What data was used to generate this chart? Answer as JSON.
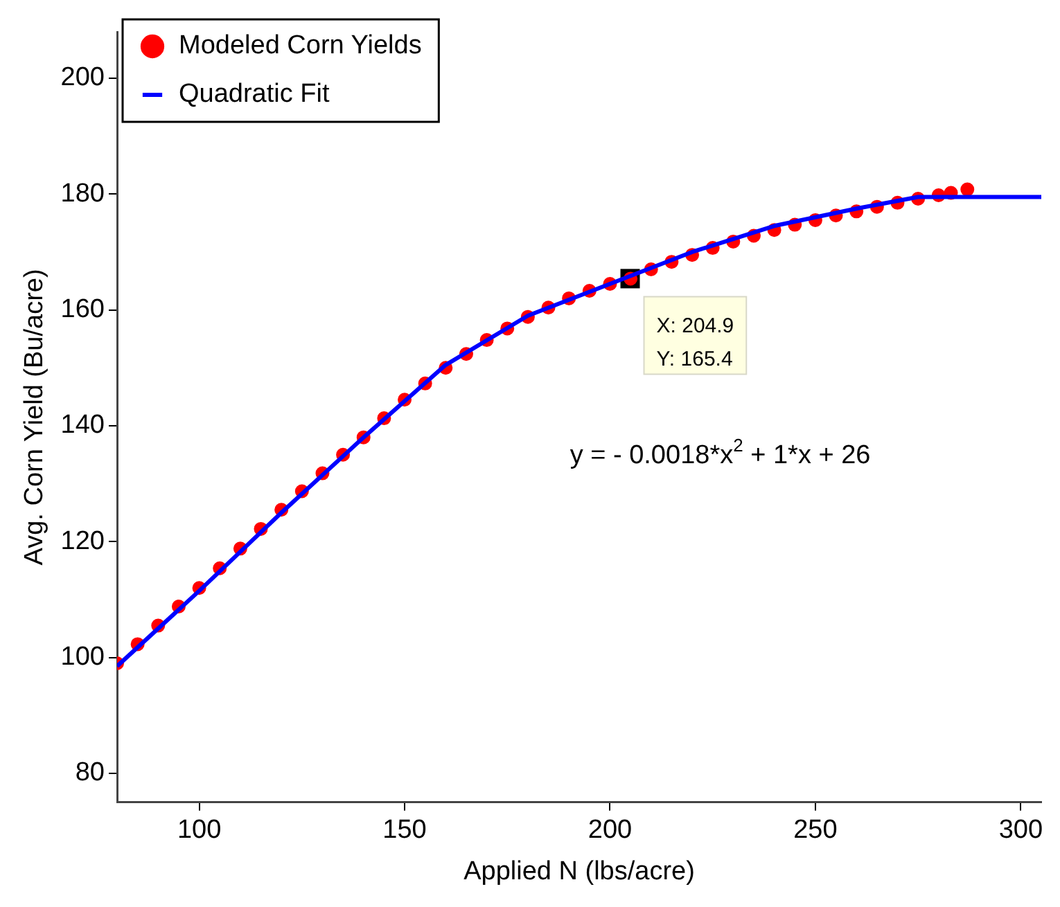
{
  "chart_data": {
    "type": "scatter",
    "xlabel": "Applied N (lbs/acre)",
    "ylabel": "Avg. Corn Yield (Bu/acre)",
    "xlim": [
      80,
      305
    ],
    "ylim": [
      75,
      208
    ],
    "xticks": [
      100,
      150,
      200,
      250,
      300
    ],
    "yticks": [
      80,
      100,
      120,
      140,
      160,
      180,
      200
    ],
    "grid": false,
    "legend": "top left",
    "marker": "circle",
    "series": [
      {
        "name": "Modeled Corn Yields",
        "color": "#ff0000",
        "x": [
          80,
          85,
          90,
          95,
          100,
          105,
          110,
          115,
          120,
          125,
          130,
          135,
          140,
          145,
          150,
          155,
          160,
          165,
          170,
          175,
          180,
          185,
          190,
          195,
          200,
          205,
          210,
          215,
          220,
          225,
          230,
          235,
          240,
          245,
          250,
          255,
          260,
          265,
          270,
          275,
          280,
          283,
          287
        ],
        "values": [
          99,
          102.3,
          105.5,
          108.8,
          112,
          115.4,
          118.8,
          122.2,
          125.5,
          128.7,
          131.8,
          135,
          138,
          141.3,
          144.5,
          147.3,
          150,
          152.4,
          154.8,
          156.8,
          158.8,
          160.4,
          162,
          163.3,
          164.5,
          165.4,
          167,
          168.3,
          169.5,
          170.7,
          171.8,
          172.8,
          173.8,
          174.7,
          175.5,
          176.3,
          177,
          177.8,
          178.5,
          179.2,
          179.8,
          180.2,
          180.8
        ]
      },
      {
        "name": "Quadratic Fit",
        "type": "line",
        "color": "#0000ff",
        "marker": "none",
        "line_style": "solid",
        "x": [
          80,
          100,
          120,
          140,
          160,
          180,
          200,
          220,
          240,
          260,
          275,
          290,
          305
        ],
        "values": [
          98.5,
          111.5,
          125,
          138,
          150.5,
          159,
          164.5,
          170,
          174.5,
          177.5,
          179.5,
          179.5,
          179.5
        ]
      }
    ],
    "annotations": [
      {
        "text": "X: 204.9\nY: 165.4",
        "x": 204.9,
        "y": 165.4
      },
      "y = - 0.0018*x$^{2}$ + 1*x + 26"
    ]
  }
}
